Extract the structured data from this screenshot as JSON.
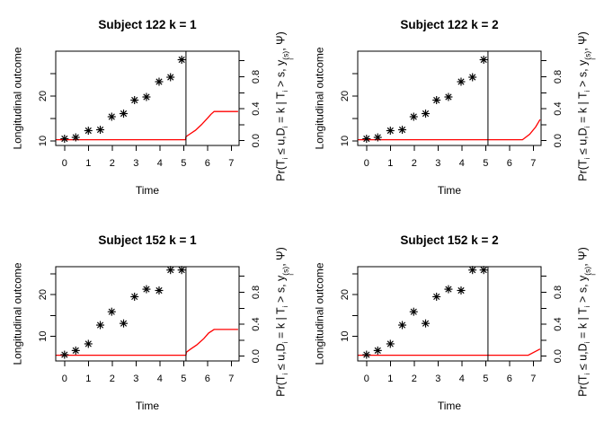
{
  "colors": {
    "curve": "#ff0000",
    "axis": "#000000",
    "background": "#ffffff"
  },
  "chart_data": [
    {
      "type": "scatter",
      "title": "Subject 122 k = 1",
      "xlabel": "Time",
      "ylabel_left": "Longitudinal outcome",
      "ylabel_right": "Pr(T_i ≤ u,D_i = k | T_i > s, y_i^(s), Ψ)",
      "ylabel_right_parts": [
        {
          "t": "Pr(T"
        },
        {
          "sub": "i"
        },
        {
          "t": " ≤ u,D"
        },
        {
          "sub": "i"
        },
        {
          "t": " = k | T"
        },
        {
          "sub": "i"
        },
        {
          "t": " > s, y"
        },
        {
          "stack": {
            "sup": "(s)",
            "sub": "i"
          }
        },
        {
          "t": ", Ψ)"
        }
      ],
      "xlim": [
        -0.37,
        7.33
      ],
      "ylim_left": [
        9.0,
        30.0
      ],
      "ylim_right": [
        -0.06,
        1.12
      ],
      "x_ticks": [
        0,
        1,
        2,
        3,
        4,
        5,
        6,
        7
      ],
      "y_left_ticks": [
        10,
        15,
        20,
        25
      ],
      "y_left_labeled": [
        {
          "v": 10,
          "label": "10"
        },
        {
          "v": 20,
          "label": "20"
        }
      ],
      "y_right_ticks": [
        0,
        0.2,
        0.4,
        0.6,
        0.8,
        1.0
      ],
      "y_right_labeled": [
        {
          "v": 0,
          "label": "0.0"
        },
        {
          "v": 0.4,
          "label": "0.4"
        },
        {
          "v": 0.8,
          "label": "0.8"
        }
      ],
      "points": {
        "x": [
          0,
          0.47,
          1.0,
          1.5,
          1.98,
          2.48,
          2.94,
          3.44,
          3.97,
          4.45,
          4.92
        ],
        "y": [
          10.5,
          10.8,
          12.3,
          12.5,
          15.4,
          16.1,
          19.1,
          19.8,
          23.2,
          24.2,
          28.1
        ]
      },
      "vline_x": 5.1,
      "curve": [
        [
          -0.37,
          0.012
        ],
        [
          5.08,
          0.012
        ],
        [
          5.1,
          0.05
        ],
        [
          5.25,
          0.08
        ],
        [
          5.5,
          0.13
        ],
        [
          5.75,
          0.2
        ],
        [
          6.0,
          0.28
        ],
        [
          6.15,
          0.33
        ],
        [
          6.28,
          0.365
        ],
        [
          7.29,
          0.365
        ]
      ]
    },
    {
      "type": "scatter",
      "title": "Subject 122 k = 2",
      "xlabel": "Time",
      "ylabel_left": "Longitudinal outcome",
      "ylabel_right": "Pr(T_i ≤ u,D_i = k | T_i > s, y_i^(s), Ψ)",
      "ylabel_right_parts": [
        {
          "t": "Pr(T"
        },
        {
          "sub": "i"
        },
        {
          "t": " ≤ u,D"
        },
        {
          "sub": "i"
        },
        {
          "t": " = k | T"
        },
        {
          "sub": "i"
        },
        {
          "t": " > s, y"
        },
        {
          "stack": {
            "sup": "(s)",
            "sub": "i"
          }
        },
        {
          "t": ", Ψ)"
        }
      ],
      "xlim": [
        -0.37,
        7.33
      ],
      "ylim_left": [
        9.0,
        30.0
      ],
      "ylim_right": [
        -0.06,
        1.12
      ],
      "x_ticks": [
        0,
        1,
        2,
        3,
        4,
        5,
        6,
        7
      ],
      "y_left_ticks": [
        10,
        15,
        20,
        25
      ],
      "y_left_labeled": [
        {
          "v": 10,
          "label": "10"
        },
        {
          "v": 20,
          "label": "20"
        }
      ],
      "y_right_ticks": [
        0,
        0.2,
        0.4,
        0.6,
        0.8,
        1.0
      ],
      "y_right_labeled": [
        {
          "v": 0,
          "label": "0.0"
        },
        {
          "v": 0.4,
          "label": "0.4"
        },
        {
          "v": 0.8,
          "label": "0.8"
        }
      ],
      "points": {
        "x": [
          0,
          0.47,
          1.0,
          1.5,
          1.98,
          2.48,
          2.94,
          3.44,
          3.97,
          4.45,
          4.92
        ],
        "y": [
          10.5,
          10.8,
          12.3,
          12.5,
          15.4,
          16.1,
          19.1,
          19.8,
          23.2,
          24.2,
          28.1
        ]
      },
      "vline_x": 5.1,
      "curve": [
        [
          -0.37,
          0.012
        ],
        [
          6.55,
          0.012
        ],
        [
          6.85,
          0.08
        ],
        [
          7.1,
          0.17
        ],
        [
          7.29,
          0.265
        ]
      ]
    },
    {
      "type": "scatter",
      "title": "Subject 152 k = 1",
      "xlabel": "Time",
      "ylabel_left": "Longitudinal outcome",
      "ylabel_right": "Pr(T_i ≤ u,D_i = k | T_i > s, y_i^(s), Ψ)",
      "ylabel_right_parts": [
        {
          "t": "Pr(T"
        },
        {
          "sub": "i"
        },
        {
          "t": " ≤ u,D"
        },
        {
          "sub": "i"
        },
        {
          "t": " = k | T"
        },
        {
          "sub": "i"
        },
        {
          "t": " > s, y"
        },
        {
          "stack": {
            "sup": "(s)",
            "sub": "i"
          }
        },
        {
          "t": ", Ψ)"
        }
      ],
      "xlim": [
        -0.37,
        7.33
      ],
      "ylim_left": [
        4.1,
        26.7
      ],
      "ylim_right": [
        -0.06,
        1.12
      ],
      "x_ticks": [
        0,
        1,
        2,
        3,
        4,
        5,
        6,
        7
      ],
      "y_left_ticks": [
        10,
        15,
        20,
        25
      ],
      "y_left_labeled": [
        {
          "v": 10,
          "label": "10"
        },
        {
          "v": 20,
          "label": "20"
        }
      ],
      "y_right_ticks": [
        0,
        0.2,
        0.4,
        0.6,
        0.8,
        1.0
      ],
      "y_right_labeled": [
        {
          "v": 0,
          "label": "0.0"
        },
        {
          "v": 0.4,
          "label": "0.4"
        },
        {
          "v": 0.8,
          "label": "0.8"
        }
      ],
      "points": {
        "x": [
          0,
          0.47,
          1.0,
          1.5,
          1.98,
          2.48,
          2.94,
          3.44,
          3.97,
          4.45,
          4.92
        ],
        "y": [
          5.6,
          6.6,
          8.2,
          12.7,
          15.9,
          13.1,
          19.5,
          21.3,
          21.0,
          25.9,
          25.9
        ]
      },
      "vline_x": 5.1,
      "curve": [
        [
          -0.37,
          0.012
        ],
        [
          5.1,
          0.012
        ],
        [
          5.12,
          0.05
        ],
        [
          5.3,
          0.09
        ],
        [
          5.55,
          0.14
        ],
        [
          5.85,
          0.22
        ],
        [
          6.05,
          0.29
        ],
        [
          6.28,
          0.335
        ],
        [
          7.29,
          0.335
        ]
      ]
    },
    {
      "type": "scatter",
      "title": "Subject 152 k = 2",
      "xlabel": "Time",
      "ylabel_left": "Longitudinal outcome",
      "ylabel_right": "Pr(T_i ≤ u,D_i = k | T_i > s, y_i^(s), Ψ)",
      "ylabel_right_parts": [
        {
          "t": "Pr(T"
        },
        {
          "sub": "i"
        },
        {
          "t": " ≤ u,D"
        },
        {
          "sub": "i"
        },
        {
          "t": " = k | T"
        },
        {
          "sub": "i"
        },
        {
          "t": " > s, y"
        },
        {
          "stack": {
            "sup": "(s)",
            "sub": "i"
          }
        },
        {
          "t": ", Ψ)"
        }
      ],
      "xlim": [
        -0.37,
        7.33
      ],
      "ylim_left": [
        4.1,
        26.7
      ],
      "ylim_right": [
        -0.06,
        1.12
      ],
      "x_ticks": [
        0,
        1,
        2,
        3,
        4,
        5,
        6,
        7
      ],
      "y_left_ticks": [
        10,
        15,
        20,
        25
      ],
      "y_left_labeled": [
        {
          "v": 10,
          "label": "10"
        },
        {
          "v": 20,
          "label": "20"
        }
      ],
      "y_right_ticks": [
        0,
        0.2,
        0.4,
        0.6,
        0.8,
        1.0
      ],
      "y_right_labeled": [
        {
          "v": 0,
          "label": "0.0"
        },
        {
          "v": 0.4,
          "label": "0.4"
        },
        {
          "v": 0.8,
          "label": "0.8"
        }
      ],
      "points": {
        "x": [
          0,
          0.47,
          1.0,
          1.5,
          1.98,
          2.48,
          2.94,
          3.44,
          3.97,
          4.45,
          4.92
        ],
        "y": [
          5.6,
          6.6,
          8.2,
          12.7,
          15.9,
          13.1,
          19.5,
          21.3,
          21.0,
          25.9,
          25.9
        ]
      },
      "vline_x": 5.1,
      "curve": [
        [
          -0.37,
          0.012
        ],
        [
          6.79,
          0.012
        ],
        [
          7.29,
          0.09
        ]
      ]
    }
  ]
}
